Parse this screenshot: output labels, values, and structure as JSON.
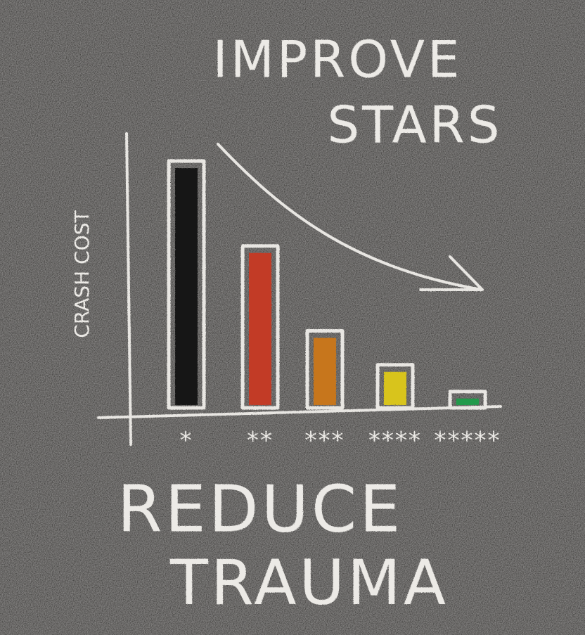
{
  "chart_data": {
    "type": "bar",
    "title_lines": [
      "IMPROVE",
      "STARS"
    ],
    "ylabel": "CRASH COST",
    "annotation_lines": [
      "REDUCE",
      "TRAUMA"
    ],
    "categories": [
      "*",
      "**",
      "***",
      "****",
      "*****"
    ],
    "values": [
      100,
      65,
      30,
      16,
      5
    ],
    "colors": [
      "#141312",
      "#c23a25",
      "#c7761f",
      "#d8c41c",
      "#249a4c"
    ]
  }
}
